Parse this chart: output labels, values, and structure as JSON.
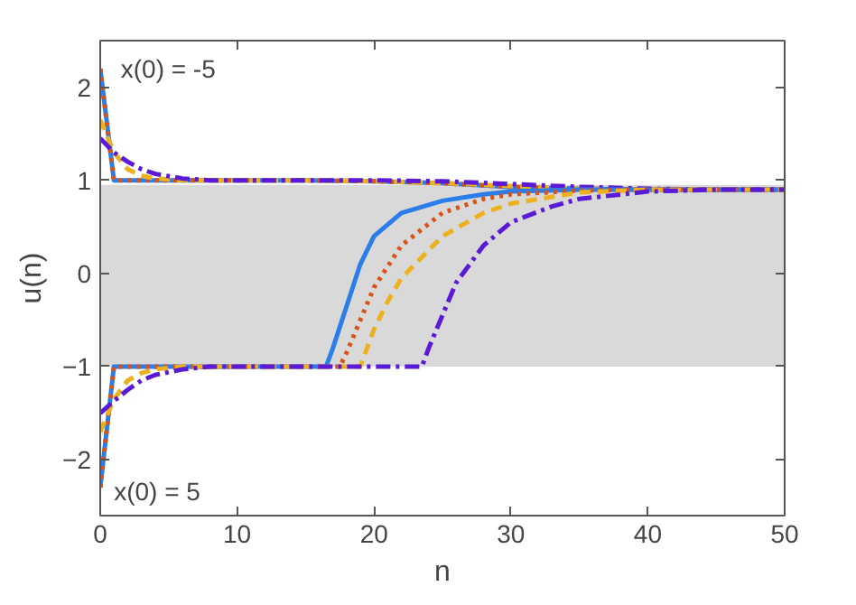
{
  "chart_data": {
    "type": "line",
    "xlabel": "n",
    "ylabel": "u(n)",
    "xlim": [
      0,
      50
    ],
    "ylim": [
      -2.6,
      2.5
    ],
    "xticks": [
      0,
      10,
      20,
      30,
      40,
      50
    ],
    "yticks": [
      -2,
      -1,
      0,
      1,
      2
    ],
    "grid": false,
    "marker": "none",
    "bands": [
      {
        "axis": "y",
        "from": -1,
        "to": 0.95,
        "color": "#d9d9d9"
      }
    ],
    "annotations": [
      "x(0) = -5",
      "x(0) = 5"
    ],
    "series": [
      {
        "color": "#2b7de9",
        "line_style": "solid",
        "x": [
          0,
          1,
          5,
          10,
          15,
          20,
          25,
          30,
          35,
          40,
          45,
          50
        ],
        "values": [
          2.2,
          1.0,
          1.0,
          1.0,
          1.0,
          0.99,
          0.97,
          0.93,
          0.91,
          0.9,
          0.9,
          0.9
        ]
      },
      {
        "color": "#d95319",
        "line_style": "dotted",
        "x": [
          0,
          1,
          5,
          10,
          15,
          20,
          25,
          30,
          35,
          40,
          45,
          50
        ],
        "values": [
          2.2,
          1.0,
          1.0,
          1.0,
          1.0,
          0.99,
          0.97,
          0.93,
          0.91,
          0.9,
          0.9,
          0.9
        ]
      },
      {
        "color": "#edb120",
        "line_style": "dashed",
        "x": [
          0,
          1,
          2,
          3,
          4,
          6,
          10,
          15,
          20,
          25,
          30,
          35,
          40,
          45,
          50
        ],
        "values": [
          1.65,
          1.3,
          1.12,
          1.05,
          1.02,
          1.0,
          1.0,
          1.0,
          0.99,
          0.97,
          0.94,
          0.91,
          0.9,
          0.9,
          0.9
        ]
      },
      {
        "color": "#5a1ad6",
        "line_style": "dashdot",
        "x": [
          0,
          1,
          2,
          3,
          4,
          6,
          8,
          10,
          15,
          20,
          25,
          30,
          35,
          40,
          45,
          50
        ],
        "values": [
          1.45,
          1.3,
          1.2,
          1.12,
          1.07,
          1.02,
          1.0,
          1.0,
          1.0,
          1.0,
          0.99,
          0.96,
          0.93,
          0.91,
          0.9,
          0.9
        ]
      },
      {
        "color": "#2b7de9",
        "line_style": "solid",
        "x": [
          0,
          1,
          5,
          10,
          16.5,
          17,
          18,
          19,
          20,
          22,
          25,
          28,
          30,
          35,
          40,
          45,
          50
        ],
        "values": [
          -2.3,
          -1.0,
          -1.0,
          -1.0,
          -1.0,
          -0.8,
          -0.35,
          0.1,
          0.4,
          0.65,
          0.78,
          0.85,
          0.88,
          0.9,
          0.9,
          0.9,
          0.9
        ]
      },
      {
        "color": "#d95319",
        "line_style": "dotted",
        "x": [
          0,
          1,
          5,
          10,
          17.5,
          18,
          19,
          20,
          22,
          25,
          28,
          30,
          35,
          40,
          45,
          50
        ],
        "values": [
          -2.3,
          -1.0,
          -1.0,
          -1.0,
          -1.0,
          -0.85,
          -0.5,
          -0.15,
          0.3,
          0.65,
          0.8,
          0.85,
          0.89,
          0.9,
          0.9,
          0.9
        ]
      },
      {
        "color": "#edb120",
        "line_style": "dashed",
        "x": [
          0,
          1,
          2,
          3,
          4,
          6,
          10,
          15,
          19,
          20,
          21,
          22,
          25,
          28,
          30,
          35,
          40,
          45,
          50
        ],
        "values": [
          -1.7,
          -1.35,
          -1.15,
          -1.07,
          -1.03,
          -1.0,
          -1.0,
          -1.0,
          -1.0,
          -0.6,
          -0.3,
          -0.05,
          0.4,
          0.65,
          0.75,
          0.87,
          0.9,
          0.9,
          0.9
        ]
      },
      {
        "color": "#5a1ad6",
        "line_style": "dashdot",
        "x": [
          0,
          1,
          2,
          3,
          4,
          6,
          8,
          10,
          15,
          20,
          23.5,
          24,
          25,
          26,
          28,
          30,
          33,
          35,
          40,
          45,
          50
        ],
        "values": [
          -1.5,
          -1.37,
          -1.25,
          -1.15,
          -1.09,
          -1.03,
          -1.0,
          -1.0,
          -1.0,
          -1.0,
          -1.0,
          -0.8,
          -0.45,
          -0.1,
          0.3,
          0.55,
          0.72,
          0.8,
          0.88,
          0.9,
          0.9
        ]
      }
    ]
  }
}
